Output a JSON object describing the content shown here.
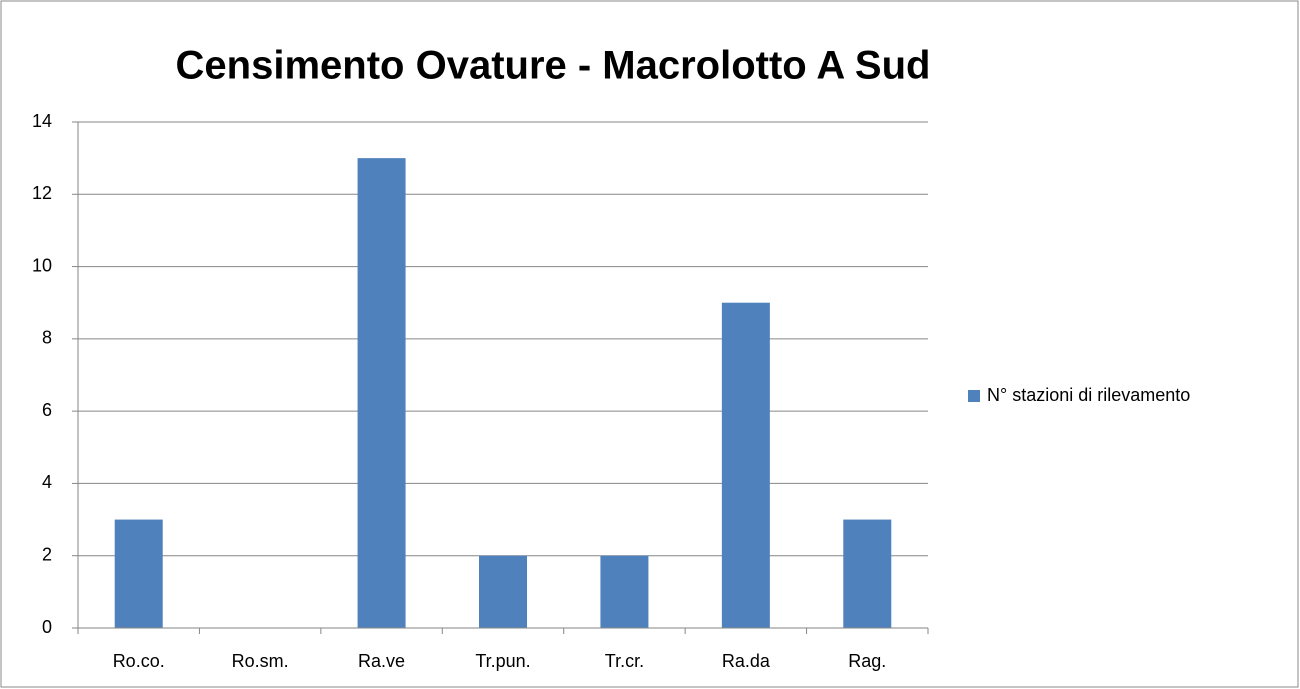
{
  "chart_data": {
    "type": "bar",
    "title": "Censimento Ovature - Macrolotto A Sud",
    "categories": [
      "Ro.co.",
      "Ro.sm.",
      "Ra.ve",
      "Tr.pun.",
      "Tr.cr.",
      "Ra.da",
      "Rag."
    ],
    "series": [
      {
        "name": "N° stazioni di rilevamento",
        "color": "#4f81bd",
        "values": [
          3,
          0,
          13,
          2,
          2,
          9,
          3
        ]
      }
    ],
    "ylim": [
      0,
      14
    ],
    "yticks": [
      0,
      2,
      4,
      6,
      8,
      10,
      12,
      14
    ],
    "grid": true,
    "legend": "right"
  }
}
